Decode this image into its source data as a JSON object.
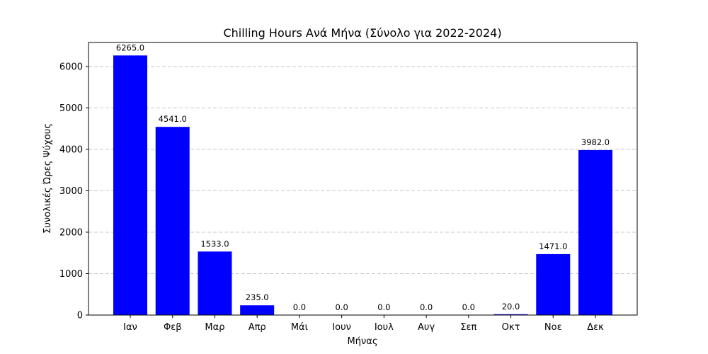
{
  "chart_data": {
    "type": "bar",
    "title": "Chilling Hours Ανά Μήνα (Σύνολο για 2022-2024)",
    "xlabel": "Μήνας",
    "ylabel": "Συνολικές Ώρες Ψύχους",
    "categories": [
      "Ιαν",
      "Φεβ",
      "Μαρ",
      "Απρ",
      "Μάι",
      "Ιουν",
      "Ιουλ",
      "Αυγ",
      "Σεπ",
      "Οκτ",
      "Νοε",
      "Δεκ"
    ],
    "values": [
      6265.0,
      4541.0,
      1533.0,
      235.0,
      0.0,
      0.0,
      0.0,
      0.0,
      0.0,
      20.0,
      1471.0,
      3982.0
    ],
    "data_labels": [
      "6265.0",
      "4541.0",
      "1533.0",
      "235.0",
      "0.0",
      "0.0",
      "0.0",
      "0.0",
      "0.0",
      "20.0",
      "1471.0",
      "3982.0"
    ],
    "ylim": [
      0,
      6578
    ],
    "yticks": [
      0,
      1000,
      2000,
      3000,
      4000,
      5000,
      6000
    ],
    "ytick_labels": [
      "0",
      "1000",
      "2000",
      "3000",
      "4000",
      "5000",
      "6000"
    ],
    "bar_color": "#0000ff",
    "grid": "y-dashed",
    "legend": "none"
  }
}
